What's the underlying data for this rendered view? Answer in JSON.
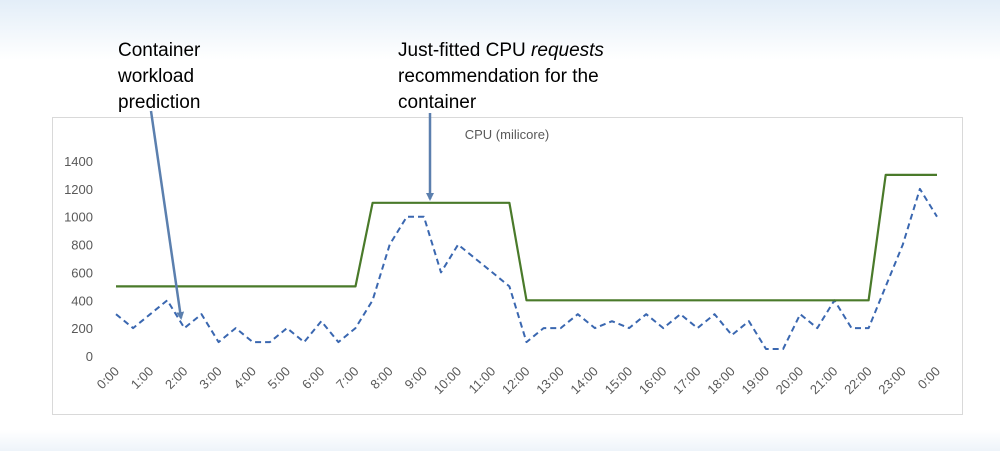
{
  "annotations": {
    "prediction": [
      "Container",
      "workload",
      "prediction"
    ],
    "recommendation": {
      "line1_prefix": "Just-fitted CPU ",
      "line1_emphasis": "requests",
      "line2": "recommendation for the",
      "line3": "container"
    }
  },
  "colors": {
    "prediction": "#3a67b0",
    "recommendation": "#4a7a2a",
    "axis_text": "#595959",
    "arrow": "#5b7fae"
  },
  "chart_data": {
    "type": "line",
    "title": "CPU (milicore)",
    "ylim": [
      0,
      1400
    ],
    "yticks": [
      0,
      200,
      400,
      600,
      800,
      1000,
      1200,
      1400
    ],
    "xlim": [
      0,
      48
    ],
    "xticks": [
      {
        "v": 0,
        "label": "0:00"
      },
      {
        "v": 2,
        "label": "1:00"
      },
      {
        "v": 4,
        "label": "2:00"
      },
      {
        "v": 6,
        "label": "3:00"
      },
      {
        "v": 8,
        "label": "4:00"
      },
      {
        "v": 10,
        "label": "5:00"
      },
      {
        "v": 12,
        "label": "6:00"
      },
      {
        "v": 14,
        "label": "7:00"
      },
      {
        "v": 16,
        "label": "8:00"
      },
      {
        "v": 18,
        "label": "9:00"
      },
      {
        "v": 20,
        "label": "10:00"
      },
      {
        "v": 22,
        "label": "11:00"
      },
      {
        "v": 24,
        "label": "12:00"
      },
      {
        "v": 26,
        "label": "13:00"
      },
      {
        "v": 28,
        "label": "14:00"
      },
      {
        "v": 30,
        "label": "15:00"
      },
      {
        "v": 32,
        "label": "16:00"
      },
      {
        "v": 34,
        "label": "17:00"
      },
      {
        "v": 36,
        "label": "18:00"
      },
      {
        "v": 38,
        "label": "19:00"
      },
      {
        "v": 40,
        "label": "20:00"
      },
      {
        "v": 42,
        "label": "21:00"
      },
      {
        "v": 44,
        "label": "22:00"
      },
      {
        "v": 46,
        "label": "23:00"
      },
      {
        "v": 48,
        "label": "0:00"
      }
    ],
    "grid": false,
    "series": [
      {
        "style": "dashed",
        "x": [
          0,
          1,
          2,
          3,
          4,
          5,
          6,
          7,
          8,
          9,
          10,
          11,
          12,
          13,
          14,
          15,
          16,
          17,
          18,
          19,
          20,
          21,
          22,
          23,
          24,
          25,
          26,
          27,
          28,
          29,
          30,
          31,
          32,
          33,
          34,
          35,
          36,
          37,
          38,
          39,
          40,
          41,
          42,
          43,
          44,
          45,
          46,
          47,
          48
        ],
        "y": [
          300,
          200,
          300,
          400,
          200,
          300,
          100,
          200,
          100,
          100,
          200,
          100,
          250,
          100,
          200,
          400,
          800,
          1000,
          1000,
          600,
          800,
          700,
          600,
          500,
          100,
          200,
          200,
          300,
          200,
          250,
          200,
          300,
          200,
          300,
          200,
          300,
          150,
          250,
          50,
          50,
          300,
          200,
          400,
          200,
          200,
          500,
          800,
          1200,
          1000
        ]
      },
      {
        "style": "solid",
        "x": [
          0,
          14,
          15,
          23,
          24,
          44,
          45,
          48
        ],
        "y": [
          500,
          500,
          1100,
          1100,
          400,
          400,
          1300,
          1300
        ]
      }
    ]
  }
}
